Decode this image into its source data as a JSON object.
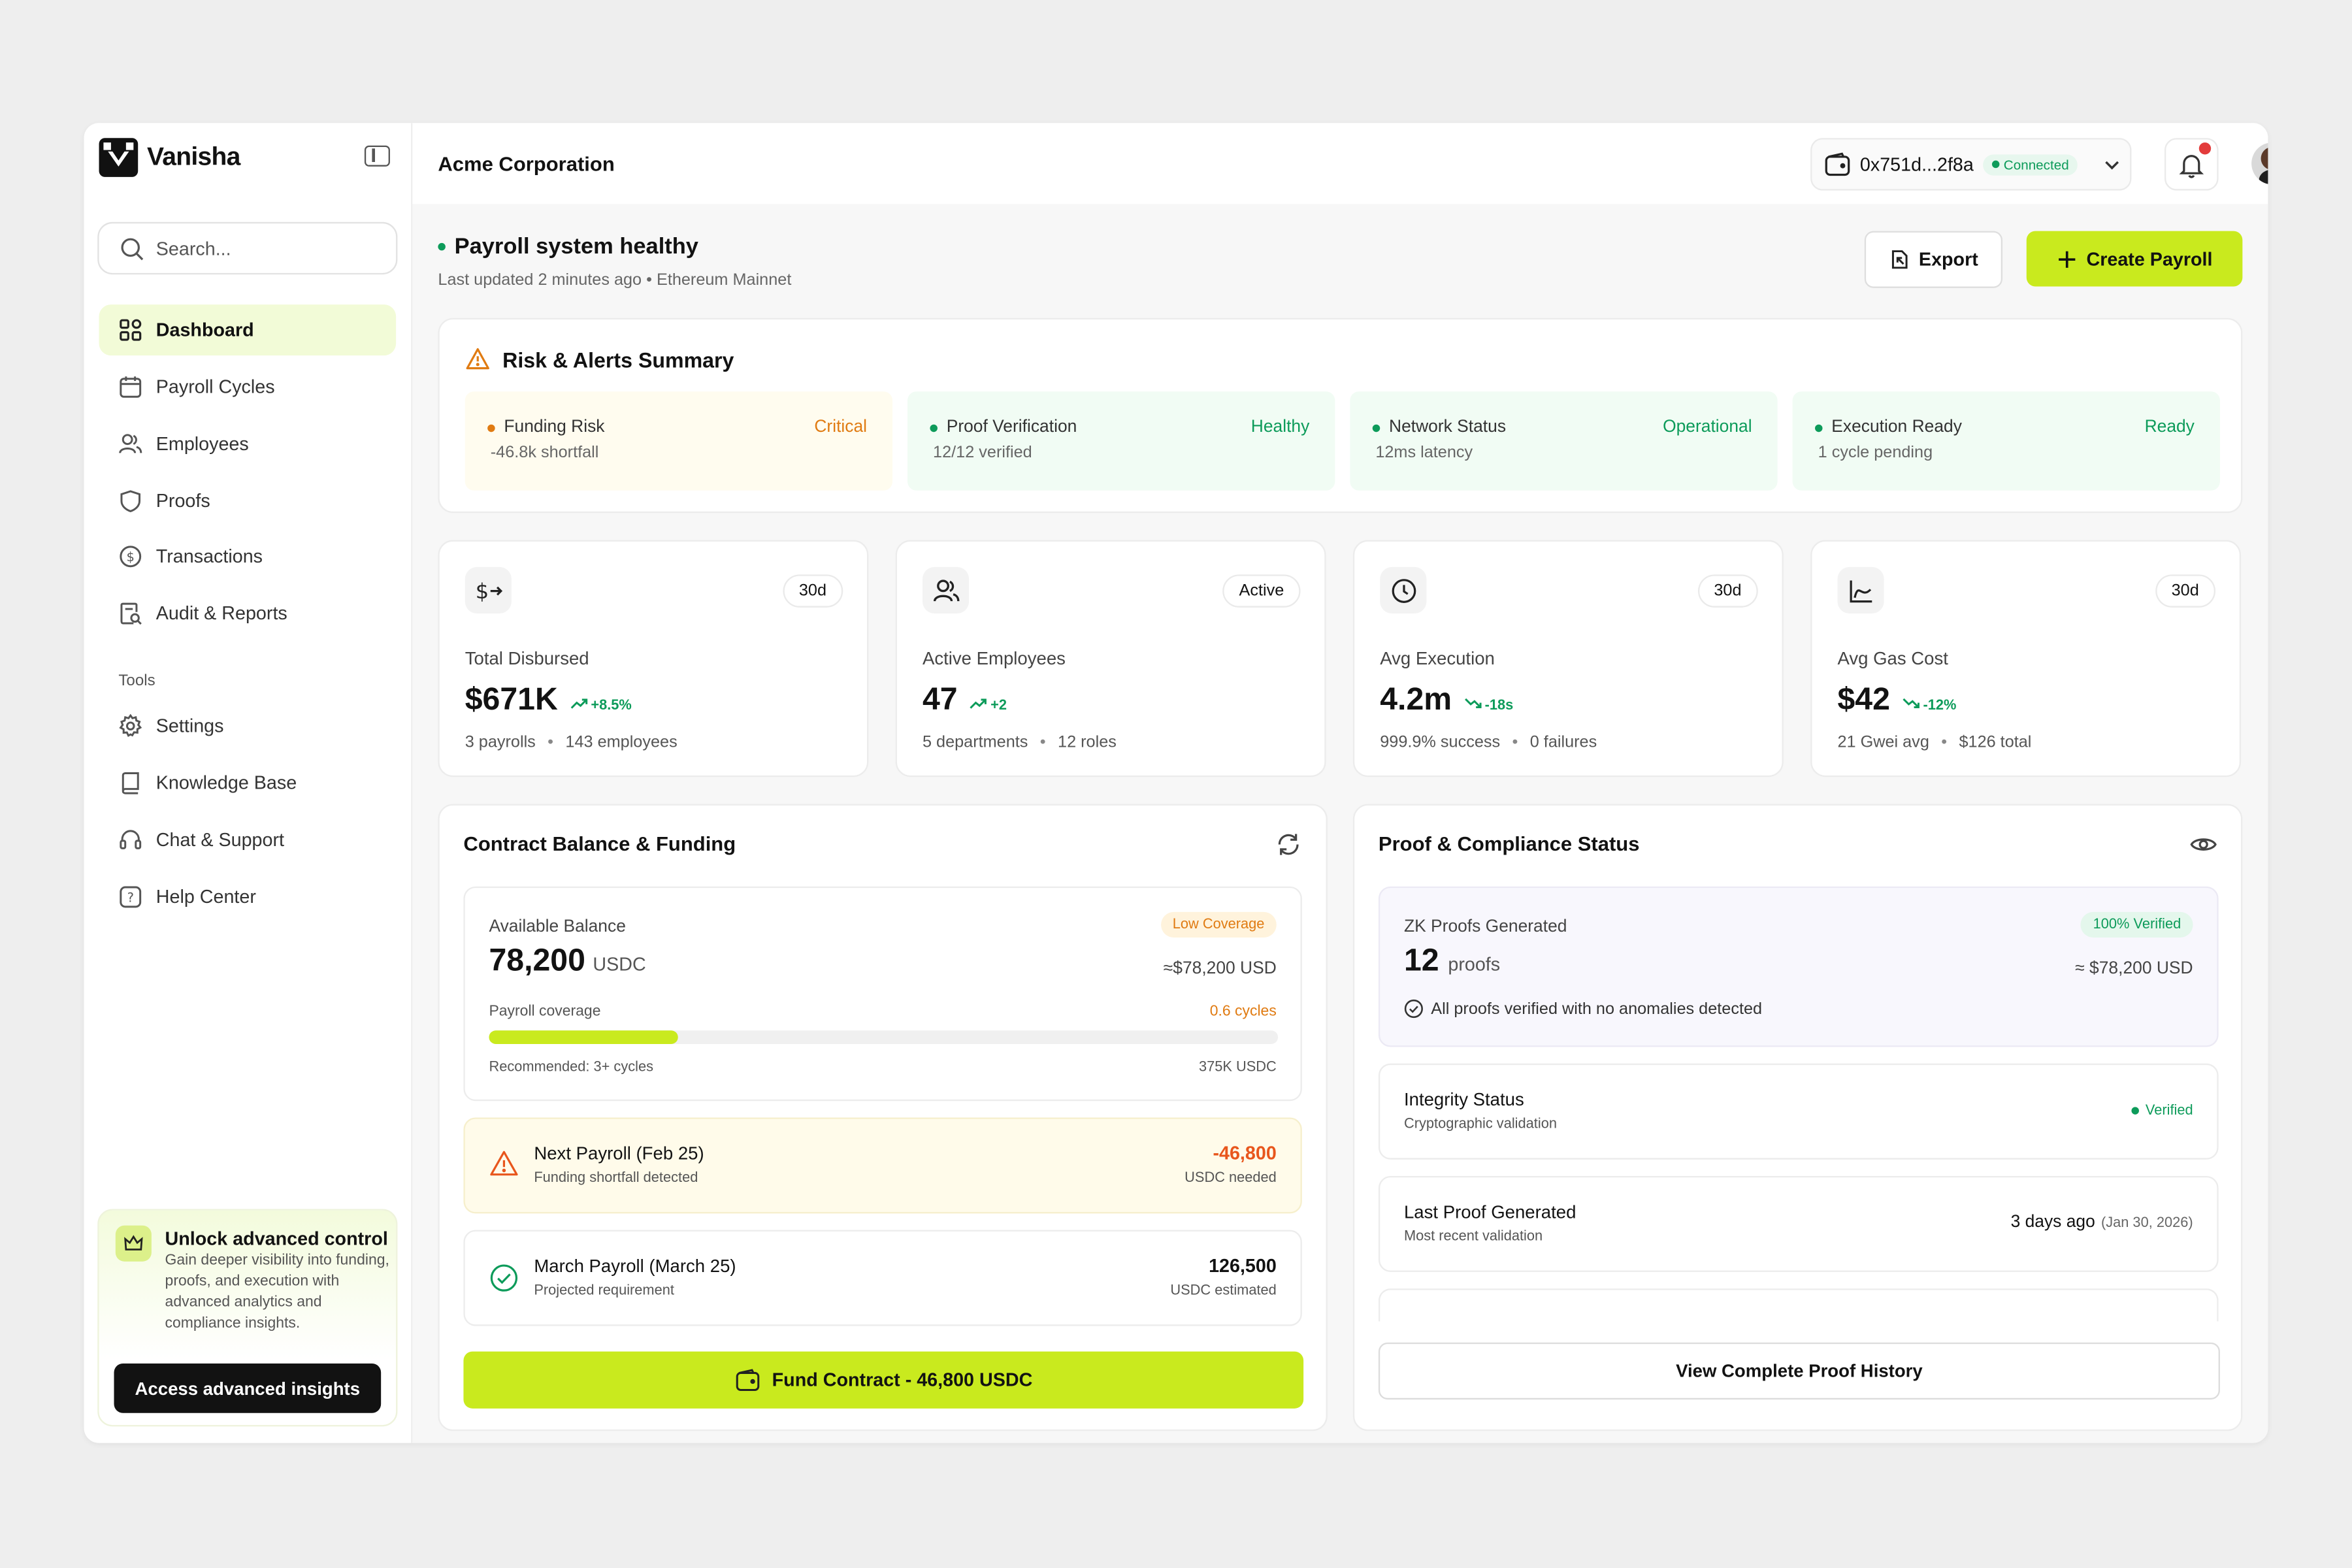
{
  "app": {
    "brand": "Vanisha",
    "company": "Acme Corporation"
  },
  "sidebar": {
    "search_placeholder": "Search...",
    "items": [
      {
        "label": "Dashboard",
        "icon": "dashboard-icon",
        "active": true
      },
      {
        "label": "Payroll Cycles",
        "icon": "calendar-icon"
      },
      {
        "label": "Employees",
        "icon": "users-icon"
      },
      {
        "label": "Proofs",
        "icon": "shield-icon"
      },
      {
        "label": "Transactions",
        "icon": "dollar-coin-icon"
      },
      {
        "label": "Audit & Reports",
        "icon": "report-icon"
      }
    ],
    "tools_heading": "Tools",
    "tools": [
      {
        "label": "Settings",
        "icon": "gear-icon"
      },
      {
        "label": "Knowledge Base",
        "icon": "book-icon"
      },
      {
        "label": "Chat & Support",
        "icon": "headset-icon"
      },
      {
        "label": "Help Center",
        "icon": "question-icon"
      }
    ],
    "promo": {
      "title": "Unlock advanced control",
      "text": "Gain deeper visibility into funding, proofs, and execution with advanced analytics and compliance insights.",
      "button": "Access advanced insights"
    }
  },
  "topbar": {
    "wallet_address": "0x751d...2f8a",
    "wallet_status": "Connected"
  },
  "status": {
    "title": "Payroll system healthy",
    "subtitle": "Last updated 2 minutes ago • Ethereum Mainnet",
    "export_label": "Export",
    "create_label": "Create Payroll"
  },
  "risk": {
    "title": "Risk & Alerts Summary",
    "items": [
      {
        "label": "Funding Risk",
        "status": "Critical",
        "sub": "-46.8k shortfall",
        "color": "#e07b12",
        "bg": "#fffcef"
      },
      {
        "label": "Proof Verification",
        "status": "Healthy",
        "sub": "12/12 verified",
        "color": "#0d9b5a",
        "bg": "#f1fcf4"
      },
      {
        "label": "Network Status",
        "status": "Operational",
        "sub": "12ms latency",
        "color": "#0d9b5a",
        "bg": "#f1fcf4"
      },
      {
        "label": "Execution Ready",
        "status": "Ready",
        "sub": "1 cycle pending",
        "color": "#0d9b5a",
        "bg": "#f1fcf4"
      }
    ]
  },
  "stats": [
    {
      "icon": "dollar-transfer-icon",
      "period": "30d",
      "label": "Total Disbursed",
      "value": "$671K",
      "delta": "+8.5%",
      "trend": "up",
      "meta": [
        "3 payrolls",
        "143 employees"
      ]
    },
    {
      "icon": "users-icon",
      "period": "Active",
      "label": "Active Employees",
      "value": "47",
      "delta": "+2",
      "trend": "up",
      "meta": [
        "5 departments",
        "12 roles"
      ]
    },
    {
      "icon": "clock-icon",
      "period": "30d",
      "label": "Avg Execution",
      "value": "4.2m",
      "delta": "-18s",
      "trend": "down",
      "meta": [
        "999.9% success",
        "0 failures"
      ]
    },
    {
      "icon": "chart-curve-icon",
      "period": "30d",
      "label": "Avg Gas Cost",
      "value": "$42",
      "delta": "-12%",
      "trend": "down",
      "meta": [
        "21 Gwei avg",
        "$126 total"
      ]
    }
  ],
  "contract": {
    "title": "Contract Balance & Funding",
    "balance_label": "Available Balance",
    "coverage_badge": "Low Coverage",
    "balance_value": "78,200",
    "balance_unit": "USDC",
    "balance_usd": "≈$78,200 USD",
    "coverage_label": "Payroll coverage",
    "coverage_cycles": "0.6 cycles",
    "coverage_fraction": 0.24,
    "recommended": "Recommended: 3+ cycles",
    "recommended_amount": "375K USDC",
    "next_payroll": {
      "title": "Next Payroll (Feb 25)",
      "sub": "Funding shortfall detected",
      "amount": "-46,800",
      "amount_sub": "USDC needed"
    },
    "march_payroll": {
      "title": "March Payroll (March 25)",
      "sub": "Projected requirement",
      "amount": "126,500",
      "amount_sub": "USDC estimated"
    },
    "fund_button": "Fund Contract - 46,800 USDC"
  },
  "proof": {
    "title": "Proof & Compliance Status",
    "zk_label": "ZK Proofs Generated",
    "zk_badge": "100% Verified",
    "zk_count": "12",
    "zk_unit": "proofs",
    "zk_usd": "≈ $78,200 USD",
    "zk_note": "All proofs verified with no anomalies detected",
    "integrity_title": "Integrity Status",
    "integrity_sub": "Cryptographic validation",
    "integrity_status": "Verified",
    "last_title": "Last Proof Generated",
    "last_sub": "Most recent validation",
    "last_value": "3 days ago",
    "last_date": "(Jan 30, 2026)",
    "history_button": "View Complete Proof History"
  },
  "colors": {
    "accent": "#c9ea1e",
    "success": "#0d9b5a",
    "warning": "#e07b12",
    "danger": "#e8561c"
  }
}
